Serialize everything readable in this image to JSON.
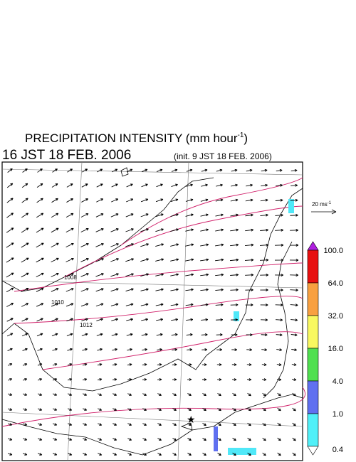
{
  "header": {
    "title": "PRECIPITATION INTENSITY (mm hour",
    "title_sup": "-1",
    "title_end": ")",
    "valid_time": "16 JST 18 FEB. 2006",
    "init_time": "(init. 9 JST 18 FEB. 2006)"
  },
  "wind_scale": {
    "label": "20 ms",
    "label_sup": "-1"
  },
  "color_scale": {
    "labels": [
      "100.0",
      "64.0",
      "32.0",
      "16.0",
      "4.0",
      "1.0",
      "0.4"
    ]
  },
  "isobars": {
    "labels": [
      "1008",
      "1010",
      "1012"
    ]
  }
}
